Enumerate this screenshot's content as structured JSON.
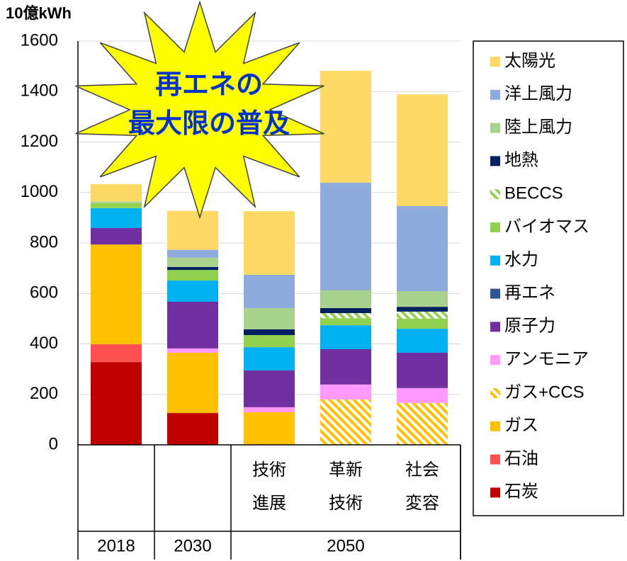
{
  "chart_data": {
    "type": "stacked-bar",
    "y_unit": "10億kWh",
    "annotation": [
      "再エネの",
      "最大限の普及"
    ],
    "categories": [
      null,
      null,
      "技術\n進展",
      "革新\n技術",
      "社会\n変容"
    ],
    "groups": [
      {
        "label": "2018",
        "count": 1
      },
      {
        "label": "2030",
        "count": 1
      },
      {
        "label": "2050",
        "count": 3
      }
    ],
    "ylim": [
      0,
      1600
    ],
    "yticks": [
      0,
      200,
      400,
      600,
      800,
      1000,
      1200,
      1400,
      1600
    ],
    "grid": true,
    "series": [
      {
        "name": "石炭",
        "color": "#c00000",
        "values": [
          328,
          126,
          0,
          0,
          0
        ]
      },
      {
        "name": "石油",
        "color": "#ff5050",
        "values": [
          71,
          0,
          0,
          0,
          0
        ]
      },
      {
        "name": "ガス",
        "color": "#ffc000",
        "values": [
          395,
          239,
          129,
          0,
          0
        ]
      },
      {
        "name": "ガス+CCS",
        "color": "#ffc000",
        "hatch": true,
        "values": [
          0,
          0,
          0,
          180,
          166
        ]
      },
      {
        "name": "アンモニア",
        "color": "#ff99ff",
        "values": [
          0,
          17,
          20,
          59,
          59
        ]
      },
      {
        "name": "原子力",
        "color": "#7030a0",
        "values": [
          65,
          185,
          146,
          140,
          140
        ]
      },
      {
        "name": "再エネ",
        "color": "#2f5597",
        "values": [
          0,
          0,
          0,
          0,
          0
        ]
      },
      {
        "name": "水力",
        "color": "#00b0f0",
        "values": [
          79,
          84,
          92,
          95,
          95
        ]
      },
      {
        "name": "バイオマス",
        "color": "#92d050",
        "values": [
          20,
          42,
          48,
          28,
          40
        ]
      },
      {
        "name": "BECCS",
        "color": "#92d050",
        "hatch": true,
        "values": [
          0,
          0,
          0,
          20,
          28
        ]
      },
      {
        "name": "地熱",
        "color": "#002060",
        "values": [
          0,
          12,
          23,
          20,
          19
        ]
      },
      {
        "name": "陸上風力",
        "color": "#a9d18e",
        "values": [
          7,
          37,
          84,
          70,
          62
        ]
      },
      {
        "name": "洋上風力",
        "color": "#8faadc",
        "values": [
          0,
          31,
          132,
          427,
          337
        ]
      },
      {
        "name": "太陽光",
        "color": "#ffd966",
        "values": [
          68,
          154,
          252,
          443,
          443
        ]
      }
    ]
  }
}
